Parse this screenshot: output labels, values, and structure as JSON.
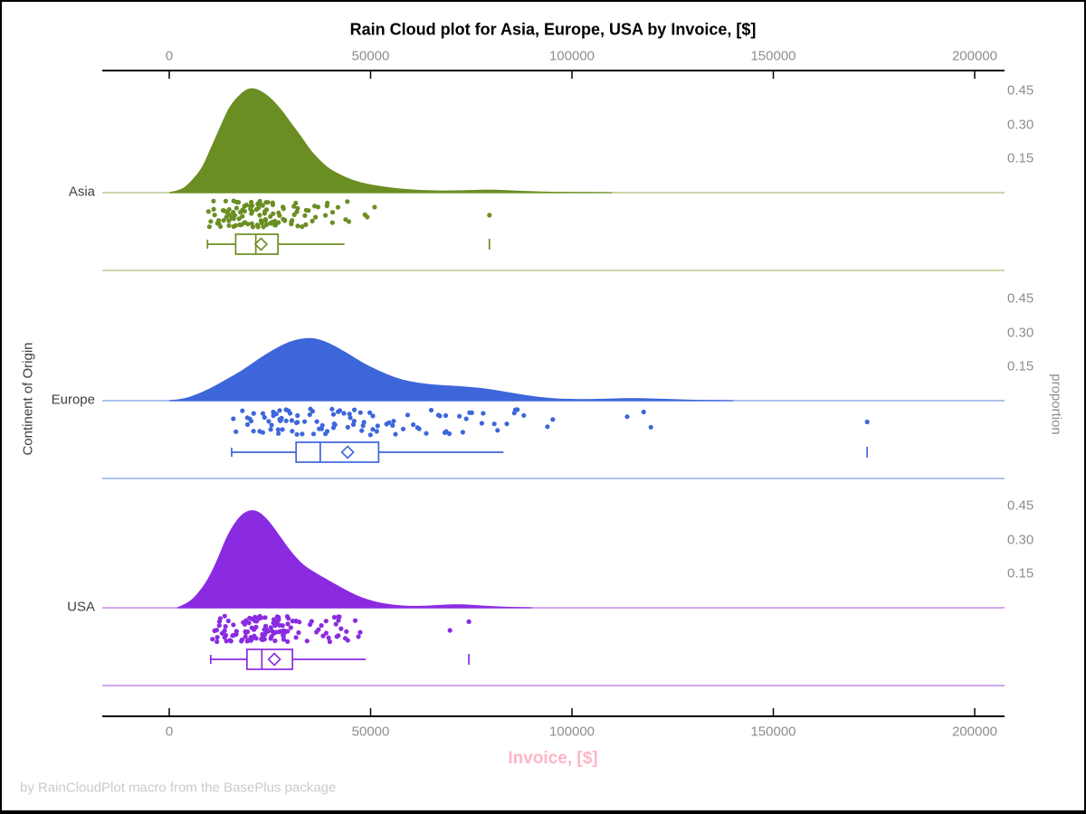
{
  "figure": {
    "title": "Rain Cloud plot for Asia, Europe, USA by Invoice, [$]",
    "footer": "by RainCloudPlot macro from the BasePlus package",
    "x_axis_label": "Invoice, [$]",
    "y_axis_label": "Continent of Origin",
    "right_axis_label": "proportion"
  },
  "style": {
    "x_label_color": "#FFB5C5",
    "tick_color": "#8E8E8E",
    "footer_color": "#CBCBCB",
    "group_label_color": "#404040",
    "axis_color": "#000000"
  },
  "chart_data": {
    "type": "raincloud",
    "title": "Rain Cloud plot for Asia, Europe, USA by Invoice, [$]",
    "xlabel": "Invoice, [$]",
    "ylabel": "Continent of Origin",
    "y2label": "proportion",
    "xlim": [
      0,
      200000
    ],
    "x_ticks": [
      0,
      50000,
      100000,
      150000,
      200000
    ],
    "proportion_ticks": [
      0.15,
      0.3,
      0.45
    ],
    "groups": [
      {
        "name": "Asia",
        "color": "#6B8E23",
        "line_color": "#CBD8AC",
        "n_points": 120,
        "seed": 7,
        "sample_range": [
          9500,
          62000
        ],
        "box": {
          "whisker_low": 9500,
          "q1": 16500,
          "median": 21500,
          "mean": 22800,
          "q3": 27000,
          "whisker_high": 43500,
          "outlier_tick": 79500
        },
        "outliers": [
          [
            79500,
            0.55
          ]
        ],
        "density": [
          [
            0,
            0
          ],
          [
            3000,
            0.01
          ],
          [
            5000,
            0.04
          ],
          [
            8000,
            0.1
          ],
          [
            10000,
            0.18
          ],
          [
            13000,
            0.3
          ],
          [
            15000,
            0.38
          ],
          [
            18000,
            0.44
          ],
          [
            20000,
            0.46
          ],
          [
            22000,
            0.455
          ],
          [
            25000,
            0.42
          ],
          [
            28000,
            0.36
          ],
          [
            30000,
            0.31
          ],
          [
            33000,
            0.24
          ],
          [
            35000,
            0.185
          ],
          [
            38000,
            0.13
          ],
          [
            40000,
            0.1
          ],
          [
            45000,
            0.055
          ],
          [
            50000,
            0.033
          ],
          [
            55000,
            0.02
          ],
          [
            60000,
            0.012
          ],
          [
            65000,
            0.008
          ],
          [
            70000,
            0.007
          ],
          [
            75000,
            0.01
          ],
          [
            80000,
            0.012
          ],
          [
            85000,
            0.008
          ],
          [
            90000,
            0.004
          ],
          [
            95000,
            0.002
          ],
          [
            100000,
            0.001
          ],
          [
            110000,
            0
          ]
        ]
      },
      {
        "name": "Europe",
        "color": "#3E66DB",
        "line_color": "#AEC2EA",
        "n_points": 108,
        "seed": 13,
        "sample_range": [
          15500,
          97000
        ],
        "box": {
          "whisker_low": 15500,
          "q1": 31500,
          "median": 37500,
          "mean": 44300,
          "q3": 52000,
          "whisker_high": 83000,
          "outlier_tick": 173300
        },
        "outliers": [
          [
            113700,
            0.3
          ],
          [
            117800,
            0.12
          ],
          [
            119600,
            0.7
          ],
          [
            173300,
            0.5
          ]
        ],
        "density": [
          [
            0,
            0
          ],
          [
            3000,
            0.004
          ],
          [
            6000,
            0.02
          ],
          [
            10000,
            0.05
          ],
          [
            14000,
            0.09
          ],
          [
            18000,
            0.13
          ],
          [
            22000,
            0.18
          ],
          [
            26000,
            0.225
          ],
          [
            30000,
            0.26
          ],
          [
            33000,
            0.272
          ],
          [
            35000,
            0.275
          ],
          [
            37000,
            0.27
          ],
          [
            40000,
            0.25
          ],
          [
            44000,
            0.21
          ],
          [
            48000,
            0.165
          ],
          [
            52000,
            0.13
          ],
          [
            56000,
            0.1
          ],
          [
            60000,
            0.082
          ],
          [
            64000,
            0.072
          ],
          [
            68000,
            0.066
          ],
          [
            72000,
            0.062
          ],
          [
            76000,
            0.057
          ],
          [
            80000,
            0.048
          ],
          [
            84000,
            0.036
          ],
          [
            88000,
            0.024
          ],
          [
            92000,
            0.014
          ],
          [
            96000,
            0.008
          ],
          [
            100000,
            0.005
          ],
          [
            105000,
            0.005
          ],
          [
            110000,
            0.008
          ],
          [
            115000,
            0.01
          ],
          [
            120000,
            0.008
          ],
          [
            125000,
            0.005
          ],
          [
            130000,
            0.002
          ],
          [
            135000,
            0.001
          ],
          [
            140000,
            0
          ]
        ]
      },
      {
        "name": "USA",
        "color": "#8A2BE2",
        "line_color": "#D2A8EC",
        "n_points": 130,
        "seed": 29,
        "sample_range": [
          10300,
          56000
        ],
        "box": {
          "whisker_low": 10300,
          "q1": 19300,
          "median": 23000,
          "mean": 26100,
          "q3": 30600,
          "whisker_high": 48800,
          "outlier_tick": 74400
        },
        "outliers": [
          [
            69700,
            0.55
          ],
          [
            74400,
            0.22
          ]
        ],
        "density": [
          [
            2000,
            0
          ],
          [
            5000,
            0.02
          ],
          [
            8000,
            0.08
          ],
          [
            10000,
            0.135
          ],
          [
            12000,
            0.21
          ],
          [
            14000,
            0.3
          ],
          [
            16000,
            0.365
          ],
          [
            18000,
            0.41
          ],
          [
            20000,
            0.43
          ],
          [
            22000,
            0.425
          ],
          [
            24000,
            0.395
          ],
          [
            26000,
            0.35
          ],
          [
            28000,
            0.3
          ],
          [
            30000,
            0.25
          ],
          [
            33000,
            0.19
          ],
          [
            36000,
            0.155
          ],
          [
            39000,
            0.125
          ],
          [
            42000,
            0.095
          ],
          [
            45000,
            0.065
          ],
          [
            48000,
            0.042
          ],
          [
            51000,
            0.026
          ],
          [
            54000,
            0.015
          ],
          [
            57000,
            0.009
          ],
          [
            60000,
            0.006
          ],
          [
            64000,
            0.007
          ],
          [
            68000,
            0.012
          ],
          [
            72000,
            0.014
          ],
          [
            76000,
            0.01
          ],
          [
            80000,
            0.005
          ],
          [
            85000,
            0.002
          ],
          [
            90000,
            0
          ]
        ]
      }
    ]
  }
}
